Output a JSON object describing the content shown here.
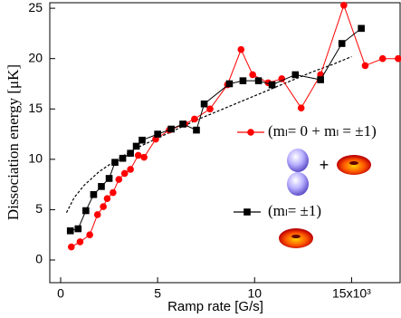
{
  "chart_data": {
    "type": "line",
    "x_label": "Ramp rate [G/s]",
    "y_label": "Dissociation energy [μK]",
    "xlim": [
      -0.56,
      17.5
    ],
    "ylim": [
      -2.25,
      25.55
    ],
    "xticks": [
      0,
      5,
      10,
      {
        "value": 15,
        "label": "15x10³"
      }
    ],
    "yticks": [
      0,
      5,
      10,
      15,
      20,
      25
    ],
    "series": [
      {
        "name": "(mₗ= 0 + mₗ = ±1)",
        "color": "#ff0000",
        "marker": "circle",
        "x": [
          0.55,
          1.0,
          1.5,
          1.9,
          2.2,
          2.4,
          2.7,
          3.0,
          3.3,
          3.6,
          4.0,
          4.3,
          4.9,
          5.6,
          6.4,
          6.9,
          7.7,
          8.6,
          9.3,
          9.9,
          10.7,
          11.4,
          12.4,
          13.4,
          14.6,
          15.7,
          16.6,
          17.4
        ],
        "values": [
          1.3,
          1.8,
          2.5,
          4.5,
          5.3,
          6.1,
          6.7,
          8.0,
          8.6,
          9.0,
          10.4,
          10.2,
          12.0,
          12.9,
          13.5,
          14.0,
          15.0,
          17.4,
          20.9,
          18.4,
          17.6,
          18.0,
          15.1,
          18.4,
          25.3,
          19.3,
          20.0,
          20.0
        ]
      },
      {
        "name": "(mₗ= ±1)",
        "color": "#000000",
        "marker": "square",
        "x": [
          0.5,
          0.9,
          1.3,
          1.7,
          2.1,
          2.5,
          2.8,
          3.2,
          3.6,
          3.9,
          4.2,
          5.0,
          5.7,
          6.3,
          7.0,
          7.4,
          8.7,
          9.4,
          10.2,
          10.9,
          12.1,
          13.4,
          14.5,
          15.5
        ],
        "values": [
          2.9,
          3.1,
          4.9,
          6.5,
          7.3,
          8.1,
          9.7,
          10.1,
          10.6,
          11.3,
          11.9,
          12.5,
          13.0,
          13.5,
          12.9,
          15.5,
          17.5,
          17.8,
          17.8,
          17.4,
          18.4,
          17.9,
          21.5,
          23.0
        ]
      }
    ],
    "fit": {
      "x": [
        0.3,
        0.7,
        1.2,
        2,
        3,
        4,
        5,
        6,
        7,
        8,
        9,
        10,
        11,
        12,
        13,
        14,
        15
      ],
      "values": [
        4.7,
        6.2,
        7.4,
        8.8,
        10.1,
        11.2,
        12.1,
        13.0,
        13.9,
        14.7,
        15.5,
        16.3,
        17.1,
        17.9,
        18.7,
        19.4,
        20.2
      ]
    },
    "legend_plus": "+"
  }
}
